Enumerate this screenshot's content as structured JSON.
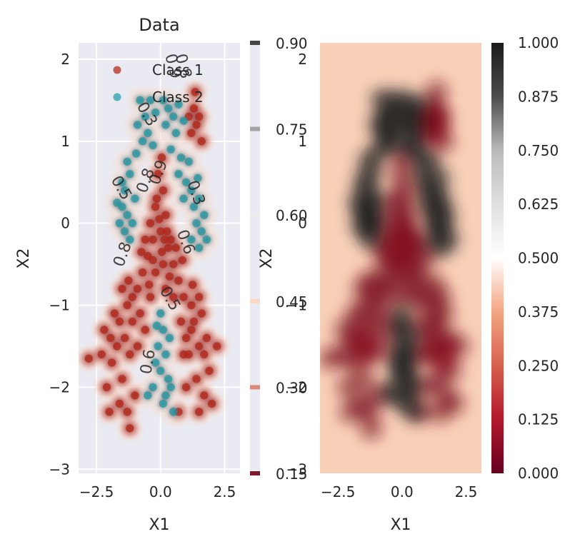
{
  "chart_data": [
    {
      "type": "scatter",
      "title": "Data",
      "xlabel": "X1",
      "ylabel": "X2",
      "xlim": [
        -3.2,
        3.1
      ],
      "ylim": [
        -3.05,
        2.2
      ],
      "grid": true,
      "legend_position": "top-right",
      "x_ticks": [
        "−2.5",
        "0.0",
        "2.5"
      ],
      "x_tick_values": [
        -2.5,
        0.0,
        2.5
      ],
      "y_ticks": [
        "2",
        "1",
        "0",
        "−1",
        "−2",
        "−3"
      ],
      "y_tick_values": [
        2,
        1,
        0,
        -1,
        -2,
        -3
      ],
      "series": [
        {
          "name": "Class 1",
          "color": "#b22212",
          "points": [
            [
              -0.1,
              0.6
            ],
            [
              0.1,
              0.4
            ],
            [
              -0.2,
              0.2
            ],
            [
              0.2,
              0.1
            ],
            [
              0.0,
              -0.1
            ],
            [
              -0.3,
              -0.2
            ],
            [
              0.3,
              -0.3
            ],
            [
              -0.5,
              -0.4
            ],
            [
              0.5,
              -0.5
            ],
            [
              -0.7,
              -0.6
            ],
            [
              0.7,
              -0.7
            ],
            [
              0.1,
              -0.5
            ],
            [
              -0.2,
              -0.6
            ],
            [
              0.2,
              -0.8
            ],
            [
              -0.9,
              -0.8
            ],
            [
              0.9,
              -0.9
            ],
            [
              -1.1,
              -0.9
            ],
            [
              -1.3,
              -1.0
            ],
            [
              1.2,
              -1.0
            ],
            [
              -0.4,
              -0.9
            ],
            [
              0.5,
              -0.9
            ],
            [
              1.3,
              -1.2
            ],
            [
              1.6,
              -1.1
            ],
            [
              -1.6,
              -1.2
            ],
            [
              -1.4,
              -1.4
            ],
            [
              -1.7,
              -1.5
            ],
            [
              1.5,
              -1.5
            ],
            [
              1.8,
              -1.4
            ],
            [
              -1.2,
              -1.6
            ],
            [
              1.1,
              -1.6
            ],
            [
              -1.9,
              -1.7
            ],
            [
              1.9,
              -1.8
            ],
            [
              -1.5,
              -1.9
            ],
            [
              1.4,
              -1.9
            ],
            [
              -2.1,
              -2.0
            ],
            [
              -1.0,
              -2.1
            ],
            [
              1.0,
              -2.0
            ],
            [
              1.7,
              -2.1
            ],
            [
              -2.3,
              -1.6
            ],
            [
              -2.8,
              -1.65
            ],
            [
              -2.0,
              -2.3
            ],
            [
              2.0,
              -2.2
            ],
            [
              -1.3,
              -2.3
            ],
            [
              1.2,
              -1.3
            ],
            [
              -0.8,
              -1.1
            ],
            [
              0.8,
              -1.2
            ],
            [
              -0.6,
              -1.3
            ],
            [
              -1.5,
              -0.8
            ],
            [
              1.5,
              -0.9
            ],
            [
              0.4,
              -0.2
            ],
            [
              -0.4,
              0.0
            ],
            [
              0.05,
              0.8
            ],
            [
              -0.15,
              0.3
            ],
            [
              0.25,
              -0.1
            ],
            [
              -0.6,
              -0.2
            ],
            [
              0.6,
              -0.3
            ],
            [
              1.2,
              1.1
            ],
            [
              1.4,
              1.2
            ],
            [
              1.3,
              1.4
            ],
            [
              1.5,
              1.3
            ],
            [
              1.6,
              1.0
            ],
            [
              1.1,
              1.3
            ],
            [
              1.35,
              1.6
            ],
            [
              -1.1,
              -1.2
            ],
            [
              1.0,
              -1.4
            ],
            [
              -1.8,
              -1.1
            ],
            [
              1.7,
              -1.6
            ],
            [
              -0.3,
              -0.45
            ],
            [
              0.15,
              -0.2
            ],
            [
              -0.75,
              -0.35
            ],
            [
              0.85,
              -0.45
            ],
            [
              -2.2,
              -1.3
            ],
            [
              2.2,
              -1.5
            ],
            [
              -1.6,
              -2.2
            ],
            [
              1.5,
              -2.3
            ],
            [
              -0.9,
              -1.5
            ],
            [
              0.9,
              -1.6
            ],
            [
              -1.2,
              -2.5
            ],
            [
              0.7,
              -2.3
            ],
            [
              -1.95,
              -1.4
            ],
            [
              1.25,
              -0.75
            ],
            [
              -1.25,
              -0.7
            ],
            [
              -0.45,
              -0.75
            ],
            [
              0.35,
              -0.65
            ],
            [
              -0.05,
              0.05
            ],
            [
              0.05,
              -0.35
            ]
          ]
        },
        {
          "name": "Class 2",
          "color": "#1a9aa6",
          "points": [
            [
              -0.8,
              1.5
            ],
            [
              -0.6,
              1.3
            ],
            [
              -0.9,
              1.2
            ],
            [
              -0.7,
              1.0
            ],
            [
              -0.5,
              1.1
            ],
            [
              -0.3,
              0.95
            ],
            [
              -1.2,
              0.6
            ],
            [
              -1.4,
              0.4
            ],
            [
              -1.5,
              0.2
            ],
            [
              -1.3,
              0.1
            ],
            [
              -1.1,
              0.0
            ],
            [
              -1.6,
              0.0
            ],
            [
              -1.2,
              -0.2
            ],
            [
              -1.4,
              -0.1
            ],
            [
              -1.0,
              0.3
            ],
            [
              -1.5,
              0.5
            ],
            [
              0.1,
              1.5
            ],
            [
              0.3,
              1.4
            ],
            [
              0.5,
              1.3
            ],
            [
              0.2,
              1.2
            ],
            [
              0.6,
              1.1
            ],
            [
              0.4,
              0.9
            ],
            [
              0.8,
              0.8
            ],
            [
              0.7,
              0.6
            ],
            [
              1.0,
              0.5
            ],
            [
              1.2,
              0.4
            ],
            [
              1.3,
              0.2
            ],
            [
              1.5,
              0.3
            ],
            [
              1.4,
              0.0
            ],
            [
              1.6,
              -0.1
            ],
            [
              1.2,
              -0.2
            ],
            [
              1.7,
              0.1
            ],
            [
              1.5,
              -0.3
            ],
            [
              0.9,
              0.3
            ],
            [
              0.0,
              -1.1
            ],
            [
              0.1,
              -1.3
            ],
            [
              -0.1,
              -1.5
            ],
            [
              0.2,
              -1.6
            ],
            [
              0.0,
              -1.8
            ],
            [
              0.3,
              -1.9
            ],
            [
              -0.2,
              -1.7
            ],
            [
              0.2,
              -2.1
            ],
            [
              0.4,
              -2.0
            ],
            [
              0.1,
              -2.2
            ],
            [
              0.5,
              -2.3
            ],
            [
              -0.3,
              -2.0
            ],
            [
              -0.5,
              -2.1
            ],
            [
              0.35,
              -1.4
            ],
            [
              -0.15,
              -1.25
            ],
            [
              -0.4,
              1.5
            ],
            [
              -0.2,
              1.35
            ],
            [
              0.7,
              1.45
            ],
            [
              0.9,
              1.25
            ],
            [
              -0.95,
              0.85
            ],
            [
              -1.3,
              0.75
            ],
            [
              1.1,
              0.75
            ],
            [
              1.45,
              0.55
            ],
            [
              -1.7,
              0.25
            ],
            [
              1.8,
              -0.2
            ]
          ]
        }
      ],
      "contour_labels": [
        "0.9",
        "0.8",
        "0.3",
        "0.5",
        "0.9",
        "0.8",
        "0.3",
        "0.8",
        "0.6",
        "0.5",
        "0.6"
      ],
      "colorbar": {
        "tick_labels": [
          "0.90",
          "0.75",
          "0.60",
          "0.45",
          "0.30",
          "0.15"
        ],
        "tick_values": [
          0.9,
          0.75,
          0.6,
          0.45,
          0.3,
          0.15
        ],
        "range": [
          0.15,
          0.9
        ],
        "overlay_tick_labels": [
          "2",
          "1",
          "0",
          "−1",
          "−2",
          "−3"
        ],
        "overlay_label": "X2",
        "levels": [
          {
            "value": 0.15,
            "color": "#7a1a2a"
          },
          {
            "value": 0.3,
            "color": "#dd8a7c"
          },
          {
            "value": 0.45,
            "color": "#f9d7c2"
          },
          {
            "value": 0.6,
            "color": "#ececec"
          },
          {
            "value": 0.75,
            "color": "#a4a4a4"
          },
          {
            "value": 0.9,
            "color": "#474747"
          }
        ]
      }
    },
    {
      "type": "heatmap",
      "title": "",
      "xlabel": "X1",
      "ylabel": "",
      "xlim": [
        -3.2,
        3.1
      ],
      "ylim": [
        -3.05,
        2.2
      ],
      "grid": false,
      "x_ticks": [
        "−2.5",
        "0.0",
        "2.5"
      ],
      "x_tick_values": [
        -2.5,
        0.0,
        2.5
      ],
      "colorbar": {
        "range": [
          0.0,
          1.0
        ],
        "tick_labels": [
          "1.000",
          "0.875",
          "0.750",
          "0.625",
          "0.500",
          "0.375",
          "0.250",
          "0.125",
          "0.000"
        ],
        "tick_values": [
          1.0,
          0.875,
          0.75,
          0.625,
          0.5,
          0.375,
          0.25,
          0.125,
          0.0
        ],
        "colormap_stops": [
          {
            "value": 0.0,
            "color": "#67001f"
          },
          {
            "value": 0.125,
            "color": "#b2182b"
          },
          {
            "value": 0.25,
            "color": "#d6604d"
          },
          {
            "value": 0.375,
            "color": "#f4a582"
          },
          {
            "value": 0.5,
            "color": "#ffffff"
          },
          {
            "value": 0.625,
            "color": "#e0e0e0"
          },
          {
            "value": 0.75,
            "color": "#bababa"
          },
          {
            "value": 0.875,
            "color": "#4d4d4d"
          },
          {
            "value": 1.0,
            "color": "#1a1a1a"
          }
        ]
      },
      "background_value": 0.4,
      "regions": [
        {
          "label": "Class 2",
          "value": 0.96,
          "x": -1.2,
          "y": 0.1
        },
        {
          "label": "Class 2",
          "value": 0.96,
          "x": -0.5,
          "y": 1.2
        },
        {
          "label": "Class 2",
          "value": 0.96,
          "x": 0.5,
          "y": 1.1
        },
        {
          "label": "Class 2",
          "value": 0.96,
          "x": 1.3,
          "y": 0.1
        },
        {
          "label": "Class 2",
          "value": 0.96,
          "x": 0.1,
          "y": -1.7
        },
        {
          "label": "Class 1",
          "value": 0.04,
          "x": 0.0,
          "y": -0.3
        },
        {
          "label": "Class 1",
          "value": 0.04,
          "x": -1.5,
          "y": -1.5
        },
        {
          "label": "Class 1",
          "value": 0.04,
          "x": 1.6,
          "y": -1.6
        },
        {
          "label": "Class 1",
          "value": 0.04,
          "x": 1.3,
          "y": 1.2
        }
      ]
    }
  ]
}
